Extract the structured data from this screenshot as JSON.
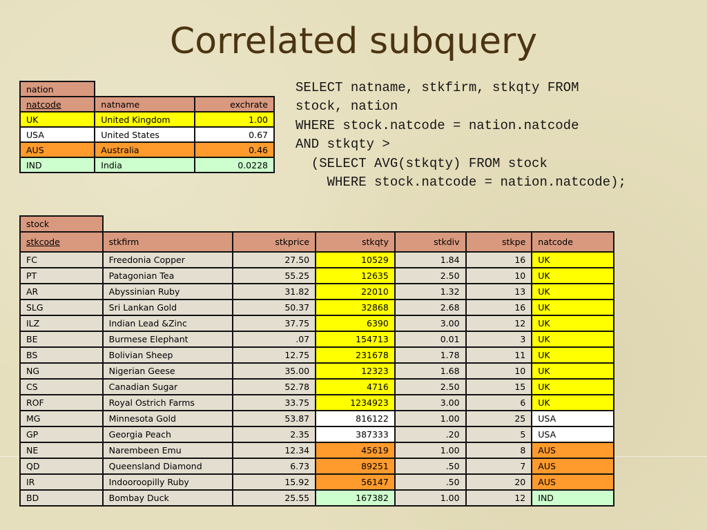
{
  "title": "Correlated subquery",
  "sql": "SELECT natname, stkfirm, stkqty FROM\nstock, nation\nWHERE stock.natcode = nation.natcode\nAND stkqty >\n  (SELECT AVG(stkqty) FROM stock\n    WHERE stock.natcode = nation.natcode);",
  "nation": {
    "table_name": "nation",
    "columns": [
      "natcode",
      "natname",
      "exchrate"
    ],
    "rows": [
      {
        "natcode": "UK",
        "natname": "United Kingdom",
        "exchrate": "1.00",
        "color": "#ffff00"
      },
      {
        "natcode": "USA",
        "natname": "United States",
        "exchrate": "0.67",
        "color": "#ffffff"
      },
      {
        "natcode": "AUS",
        "natname": "Australia",
        "exchrate": "0.46",
        "color": "#ff9a2c"
      },
      {
        "natcode": "IND",
        "natname": "India",
        "exchrate": "0.0228",
        "color": "#cdfecd"
      }
    ]
  },
  "stock": {
    "table_name": "stock",
    "columns": [
      "stkcode",
      "stkfirm",
      "stkprice",
      "stkqty",
      "stkdiv",
      "stkpe",
      "natcode"
    ],
    "rows": [
      [
        "FC",
        "Freedonia Copper",
        "27.50",
        "10529",
        "1.84",
        "16",
        "UK"
      ],
      [
        "PT",
        "Patagonian Tea",
        "55.25",
        "12635",
        "2.50",
        "10",
        "UK"
      ],
      [
        "AR",
        "Abyssinian Ruby",
        "31.82",
        "22010",
        "1.32",
        "13",
        "UK"
      ],
      [
        "SLG",
        "Sri Lankan Gold",
        "50.37",
        "32868",
        "2.68",
        "16",
        "UK"
      ],
      [
        "ILZ",
        "Indian Lead &Zinc",
        "37.75",
        "6390",
        "3.00",
        "12",
        "UK"
      ],
      [
        "BE",
        "Burmese Elephant",
        ".07",
        "154713",
        "0.01",
        "3",
        "UK"
      ],
      [
        "BS",
        "Bolivian Sheep",
        "12.75",
        "231678",
        "1.78",
        "11",
        "UK"
      ],
      [
        "NG",
        "Nigerian Geese",
        "35.00",
        "12323",
        "1.68",
        "10",
        "UK"
      ],
      [
        "CS",
        "Canadian Sugar",
        "52.78",
        "4716",
        "2.50",
        "15",
        "UK"
      ],
      [
        "ROF",
        "Royal Ostrich Farms",
        "33.75",
        "1234923",
        "3.00",
        "6",
        "UK"
      ],
      [
        "MG",
        "Minnesota Gold",
        "53.87",
        "816122",
        "1.00",
        "25",
        "USA"
      ],
      [
        "GP",
        "Georgia Peach",
        "2.35",
        "387333",
        ".20",
        "5",
        "USA"
      ],
      [
        "NE",
        "Narembeen Emu",
        "12.34",
        "45619",
        "1.00",
        "8",
        "AUS"
      ],
      [
        "QD",
        "Queensland Diamond",
        "6.73",
        "89251",
        ".50",
        "7",
        "AUS"
      ],
      [
        "IR",
        "Indooroopilly Ruby",
        "15.92",
        "56147",
        ".50",
        "20",
        "AUS"
      ],
      [
        "BD",
        "Bombay Duck",
        "25.55",
        "167382",
        "1.00",
        "12",
        "IND"
      ]
    ]
  },
  "colors": {
    "UK": "#ffff00",
    "USA": "#ffffff",
    "AUS": "#ff9a2c",
    "IND": "#cdfecd",
    "header": "#d9997f",
    "plain_cell": "#e3ded0"
  }
}
